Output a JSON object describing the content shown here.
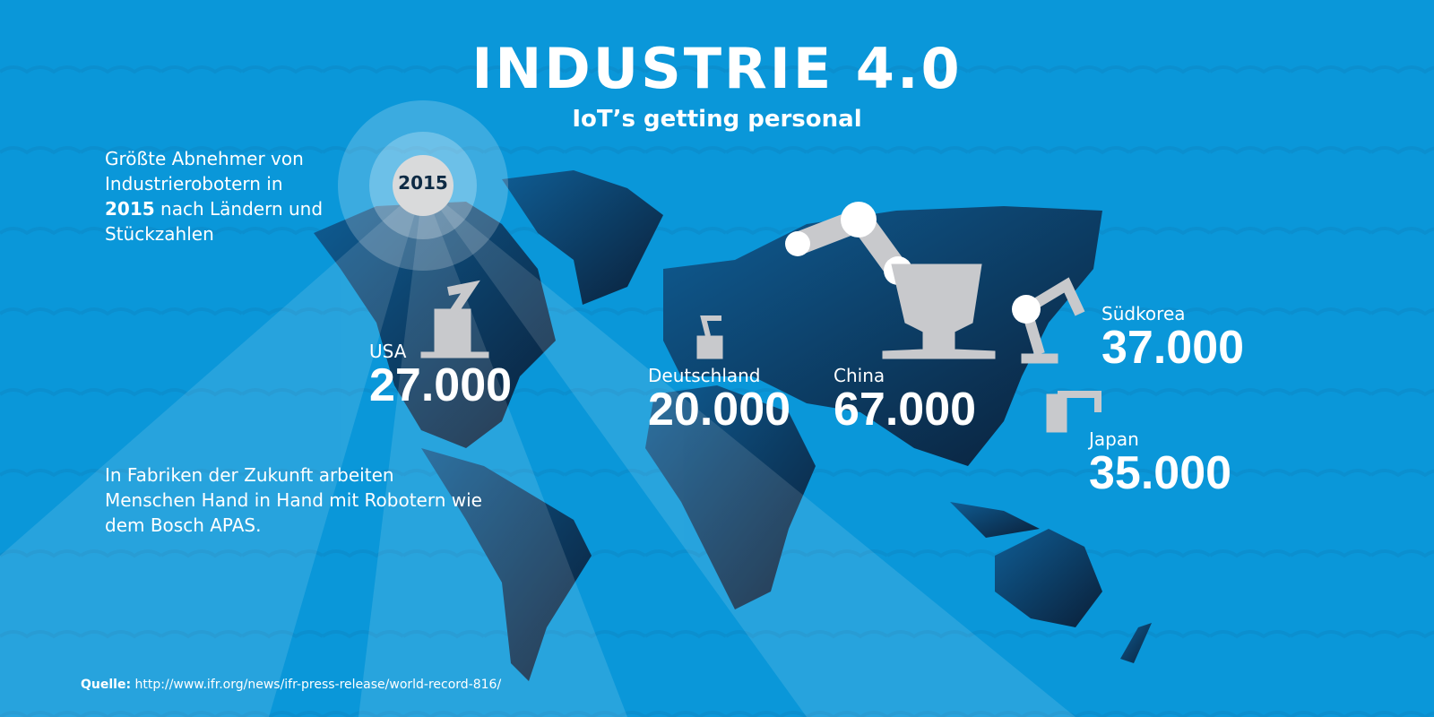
{
  "header": {
    "title": "INDUSTRIE 4.0",
    "subtitle": "IoT’s getting personal"
  },
  "badge": "2015",
  "intro": {
    "before": "Größte Abnehmer von Industrierobotern in",
    "year": "2015",
    "after": "nach Ländern und Stückzahlen"
  },
  "countries": [
    {
      "name": "USA",
      "value": "27.000"
    },
    {
      "name": "Deutschland",
      "value": "20.000"
    },
    {
      "name": "China",
      "value": "67.000"
    },
    {
      "name": "Südkorea",
      "value": "37.000"
    },
    {
      "name": "Japan",
      "value": "35.000"
    }
  ],
  "note": "In Fabriken der Zukunft arbeiten Menschen Hand in Hand mit Robotern wie dem Bosch APAS.",
  "source": {
    "label": "Quelle:",
    "url": "http://www.ifr.org/news/ifr-press-release/world-record-816/"
  }
}
